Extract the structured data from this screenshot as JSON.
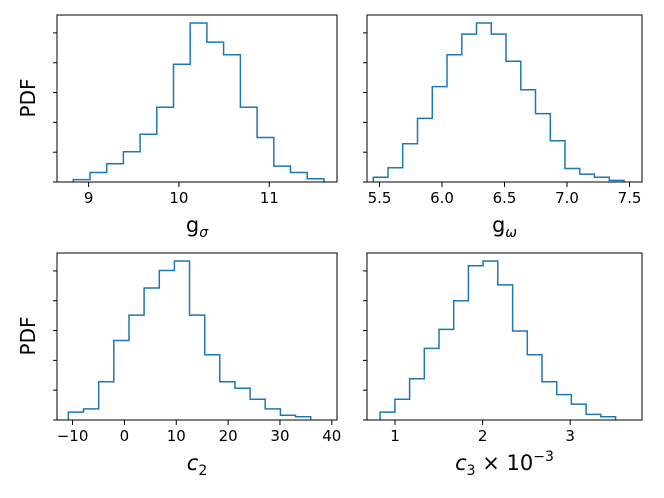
{
  "colors": {
    "line": "#1f77b4",
    "axes": "#000000"
  },
  "chart_data": [
    {
      "type": "step-histogram",
      "xlabel_main": "g",
      "xlabel_sub": "σ",
      "ylabel": "PDF",
      "xlim": [
        8.65,
        11.75
      ],
      "ylim": [
        0,
        1.0
      ],
      "xticks": [
        9,
        10,
        11
      ],
      "xticklabels": [
        "9",
        "10",
        "11"
      ],
      "ytick_count": 6,
      "bin_start": 8.83,
      "bin_width": 0.185,
      "counts": [
        0.015,
        0.06,
        0.115,
        0.19,
        0.3,
        0.47,
        0.74,
        1.0,
        0.88,
        0.8,
        0.47,
        0.28,
        0.1,
        0.06,
        0.02
      ]
    },
    {
      "type": "step-histogram",
      "xlabel_main": "g",
      "xlabel_sub": "ω",
      "ylabel": "",
      "xlim": [
        5.4,
        7.6
      ],
      "ylim": [
        0,
        1.0
      ],
      "xticks": [
        5.5,
        6.0,
        6.5,
        7.0,
        7.5
      ],
      "xticklabels": [
        "5.5",
        "6.0",
        "6.5",
        "7.0",
        "7.5"
      ],
      "ytick_count": 6,
      "bin_start": 5.45,
      "bin_width": 0.118,
      "counts": [
        0.03,
        0.09,
        0.24,
        0.4,
        0.6,
        0.8,
        0.93,
        1.0,
        0.93,
        0.76,
        0.58,
        0.43,
        0.26,
        0.085,
        0.05,
        0.03,
        0.01
      ]
    },
    {
      "type": "step-histogram",
      "xlabel_main": "c",
      "xlabel_sub": "2",
      "ylabel": "PDF",
      "xlim": [
        -13,
        41
      ],
      "ylim": [
        0,
        1.0
      ],
      "xticks": [
        -10,
        0,
        10,
        20,
        30,
        40
      ],
      "xticklabels": [
        "−10",
        "0",
        "10",
        "20",
        "30",
        "40"
      ],
      "ytick_count": 6,
      "bin_start": -10.8,
      "bin_width": 2.92,
      "counts": [
        0.05,
        0.07,
        0.24,
        0.5,
        0.66,
        0.83,
        0.94,
        1.0,
        0.66,
        0.41,
        0.24,
        0.2,
        0.13,
        0.07,
        0.03,
        0.02
      ]
    },
    {
      "type": "step-histogram",
      "xlabel_main": "c",
      "xlabel_sub": "3",
      "xlabel_suffix": " × 10",
      "xlabel_exp": "−3",
      "ylabel": "",
      "xlim": [
        0.68,
        3.82
      ],
      "ylim": [
        0,
        1.0
      ],
      "xticks": [
        1,
        2,
        3
      ],
      "xticklabels": [
        "1",
        "2",
        "3"
      ],
      "ytick_count": 6,
      "bin_start": 0.83,
      "bin_width": 0.168,
      "counts": [
        0.05,
        0.13,
        0.26,
        0.45,
        0.57,
        0.75,
        0.97,
        1.0,
        0.85,
        0.56,
        0.41,
        0.24,
        0.16,
        0.1,
        0.035,
        0.02
      ]
    }
  ]
}
